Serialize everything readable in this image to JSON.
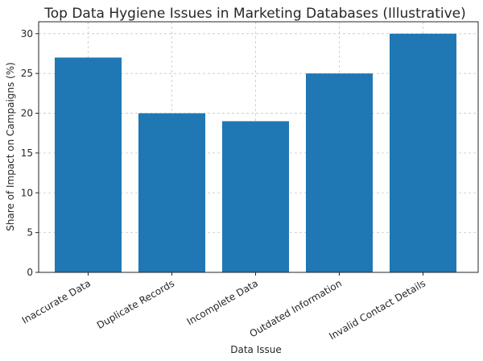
{
  "chart_data": {
    "type": "bar",
    "title": "Top Data Hygiene Issues in Marketing Databases (Illustrative)",
    "xlabel": "Data Issue",
    "ylabel": "Share of Impact on Campaigns (%)",
    "categories": [
      "Inaccurate Data",
      "Duplicate Records",
      "Incomplete Data",
      "Outdated Information",
      "Invalid Contact Details"
    ],
    "values": [
      27,
      20,
      19,
      25,
      30
    ],
    "ylim": [
      0,
      31.5
    ],
    "yticks": [
      0,
      5,
      10,
      15,
      20,
      25,
      30
    ],
    "grid": true,
    "bar_color": "#1f77b4"
  }
}
